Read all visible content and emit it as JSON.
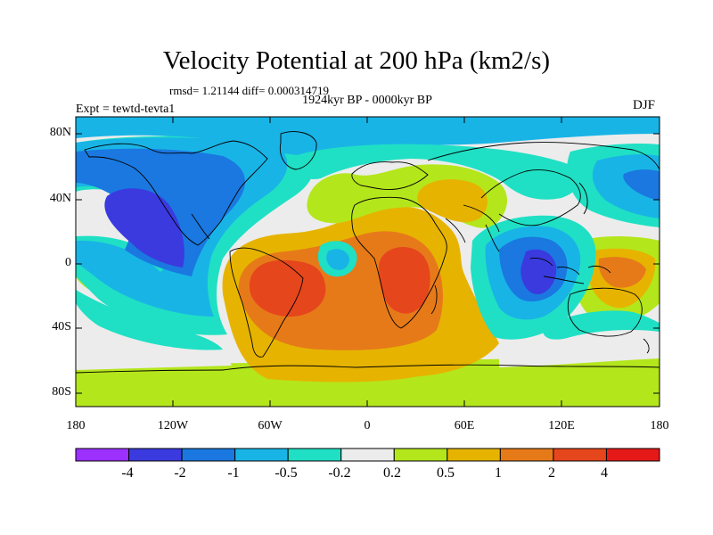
{
  "title": "Velocity Potential at 200 hPa (km2/s)",
  "stats": "rmsd= 1.21144 diff= 0.000314719",
  "subtitle": "1924kyr BP - 0000kyr BP",
  "experiment": "Expt = tewtd-tevta1",
  "season": "DJF",
  "lat_labels": [
    "80N",
    "40N",
    "0",
    "40S",
    "80S"
  ],
  "lon_labels": [
    "180",
    "120W",
    "60W",
    "0",
    "60E",
    "120E",
    "180"
  ],
  "colorbar": {
    "labels": [
      "-4",
      "-2",
      "-1",
      "-0.5",
      "-0.2",
      "0.2",
      "0.5",
      "1",
      "2",
      "4"
    ],
    "colors": [
      "#9b30ff",
      "#3a3adf",
      "#1a78e0",
      "#19b4e6",
      "#1fe0c4",
      "#ececec",
      "#b4e61c",
      "#e6b400",
      "#e67a19",
      "#e6461c",
      "#e61919"
    ]
  },
  "colors": {
    "background": "#ececec",
    "coast": "#000000"
  }
}
